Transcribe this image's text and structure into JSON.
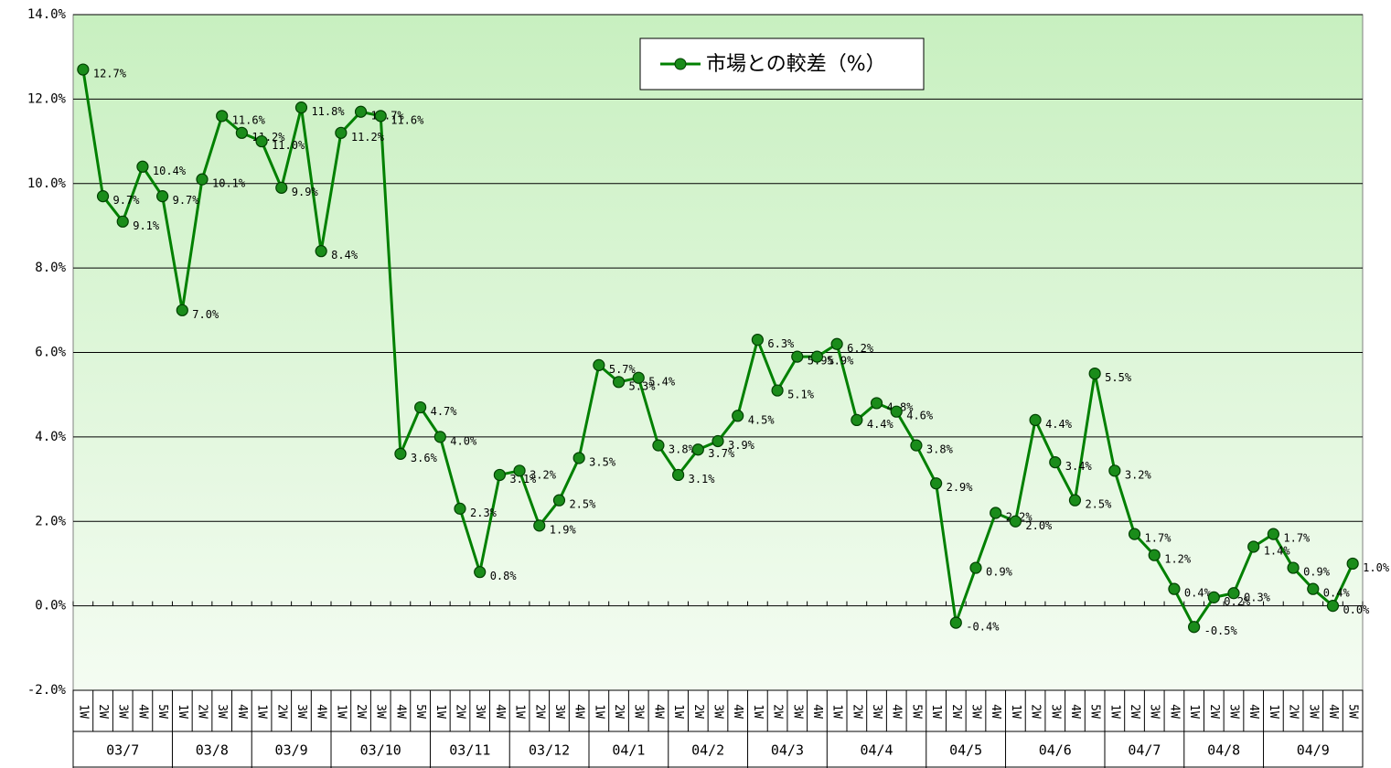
{
  "chart_data": {
    "type": "line",
    "categories": [
      "1W",
      "2W",
      "3W",
      "4W",
      "5W",
      "1W",
      "2W",
      "3W",
      "4W",
      "1W",
      "2W",
      "3W",
      "4W",
      "1W",
      "2W",
      "3W",
      "4W",
      "5W",
      "1W",
      "2W",
      "3W",
      "4W",
      "1W",
      "2W",
      "3W",
      "4W",
      "1W",
      "2W",
      "3W",
      "4W",
      "1W",
      "2W",
      "3W",
      "4W",
      "1W",
      "2W",
      "3W",
      "4W",
      "1W",
      "2W",
      "3W",
      "4W",
      "5W",
      "1W",
      "2W",
      "3W",
      "4W",
      "1W",
      "2W",
      "3W",
      "4W",
      "5W",
      "1W",
      "2W",
      "3W",
      "4W",
      "1W",
      "2W",
      "3W",
      "4W",
      "1W",
      "2W",
      "3W",
      "4W",
      "5W"
    ],
    "months": [
      "03/7",
      null,
      null,
      null,
      null,
      "03/8",
      null,
      null,
      null,
      "03/9",
      null,
      null,
      null,
      "03/10",
      null,
      null,
      null,
      null,
      "03/11",
      null,
      null,
      null,
      "03/12",
      null,
      null,
      null,
      "04/1",
      null,
      null,
      null,
      "04/2",
      null,
      null,
      null,
      "04/3",
      null,
      null,
      null,
      "04/4",
      null,
      null,
      null,
      null,
      "04/5",
      null,
      null,
      null,
      "04/6",
      null,
      null,
      null,
      null,
      "04/7",
      null,
      null,
      null,
      "04/8",
      null,
      null,
      null,
      "04/9",
      null,
      null,
      null,
      null
    ],
    "series": [
      {
        "name": "市場との較差（%）",
        "color": "#008000",
        "marker_color": "#1a8c1a",
        "values": [
          12.7,
          9.7,
          9.1,
          10.4,
          9.7,
          7.0,
          10.1,
          11.6,
          11.2,
          11.0,
          9.9,
          11.8,
          8.4,
          11.2,
          11.7,
          11.6,
          3.6,
          4.7,
          4.0,
          2.3,
          0.8,
          3.1,
          3.2,
          1.9,
          2.5,
          3.5,
          5.7,
          5.3,
          5.4,
          3.8,
          3.1,
          3.7,
          3.9,
          4.5,
          6.3,
          5.1,
          5.9,
          5.9,
          6.2,
          4.4,
          4.8,
          4.6,
          3.8,
          2.9,
          -0.4,
          0.9,
          2.2,
          2.0,
          4.4,
          3.4,
          2.5,
          5.5,
          3.2,
          1.7,
          1.2,
          0.4,
          -0.5,
          0.2,
          0.3,
          1.4,
          1.7,
          0.9,
          0.4,
          0.0,
          1.0
        ],
        "value_labels": [
          "12.7%",
          "9.7%",
          "9.1%",
          "10.4%",
          "9.7%",
          "7.0%",
          "10.1%",
          "11.6%",
          "11.2%",
          "11.0%",
          "9.9%",
          "11.8%",
          "8.4%",
          "11.2%",
          "11.7%",
          "11.6%",
          "3.6%",
          "4.7%",
          "4.0%",
          "2.3%",
          "0.8%",
          "3.1%",
          "3.2%",
          "1.9%",
          "2.5%",
          "3.5%",
          "5.7%",
          "5.3%",
          "5.4%",
          "3.8%",
          "3.1%",
          "3.7%",
          "3.9%",
          "4.5%",
          "6.3%",
          "5.1%",
          "5.9%",
          "5.9%",
          "6.2%",
          "4.4%",
          "4.8%",
          "4.6%",
          "3.8%",
          "2.9%",
          "-0.4%",
          "0.9%",
          "2.2%",
          "2.0%",
          "4.4%",
          "3.4%",
          "2.5%",
          "5.5%",
          "3.2%",
          "1.7%",
          "1.2%",
          "0.4%",
          "-0.5%",
          "0.2%",
          "0.3%",
          "1.4%",
          "1.7%",
          "0.9%",
          "0.4%",
          "0.0%",
          "1.0%"
        ]
      }
    ],
    "ylim": [
      -2,
      14
    ],
    "yticks": [
      {
        "value": -2,
        "label": "-2.0%"
      },
      {
        "value": 0,
        "label": "0.0%"
      },
      {
        "value": 2,
        "label": "2.0%"
      },
      {
        "value": 4,
        "label": "4.0%"
      },
      {
        "value": 6,
        "label": "6.0%"
      },
      {
        "value": 8,
        "label": "8.0%"
      },
      {
        "value": 10,
        "label": "10.0%"
      },
      {
        "value": 12,
        "label": "12.0%"
      },
      {
        "value": 14,
        "label": "14.0%"
      }
    ],
    "grid": true,
    "legend": "top"
  }
}
